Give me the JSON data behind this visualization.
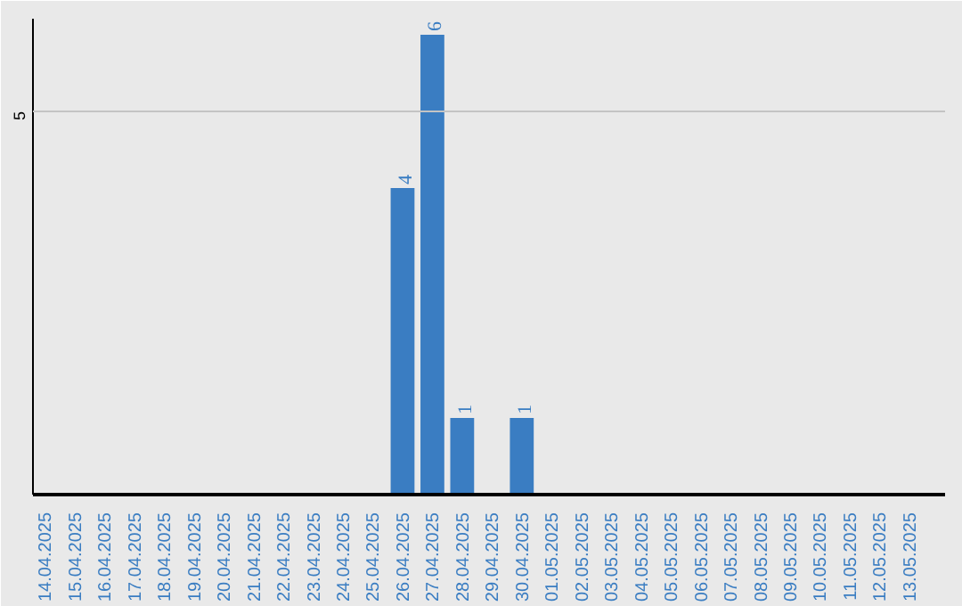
{
  "chart_data": {
    "type": "bar",
    "categories": [
      "14.04.2025",
      "15.04.2025",
      "16.04.2025",
      "17.04.2025",
      "18.04.2025",
      "19.04.2025",
      "20.04.2025",
      "21.04.2025",
      "22.04.2025",
      "23.04.2025",
      "24.04.2025",
      "25.04.2025",
      "26.04.2025",
      "27.04.2025",
      "28.04.2025",
      "29.04.2025",
      "30.04.2025",
      "01.05.2025",
      "02.05.2025",
      "03.05.2025",
      "04.05.2025",
      "05.05.2025",
      "06.05.2025",
      "07.05.2025",
      "08.05.2025",
      "09.05.2025",
      "10.05.2025",
      "11.05.2025",
      "12.05.2025",
      "13.05.2025"
    ],
    "values": [
      null,
      null,
      null,
      null,
      null,
      null,
      null,
      null,
      null,
      null,
      null,
      null,
      4,
      6,
      1,
      null,
      1,
      null,
      null,
      null,
      null,
      null,
      null,
      null,
      null,
      null,
      null,
      null,
      null,
      null
    ],
    "data_labels": true,
    "color": "#3a7dc2",
    "ref_lines": [
      {
        "axis": "y",
        "value": 5,
        "label": "5",
        "color": "#c4c4c4"
      }
    ]
  }
}
